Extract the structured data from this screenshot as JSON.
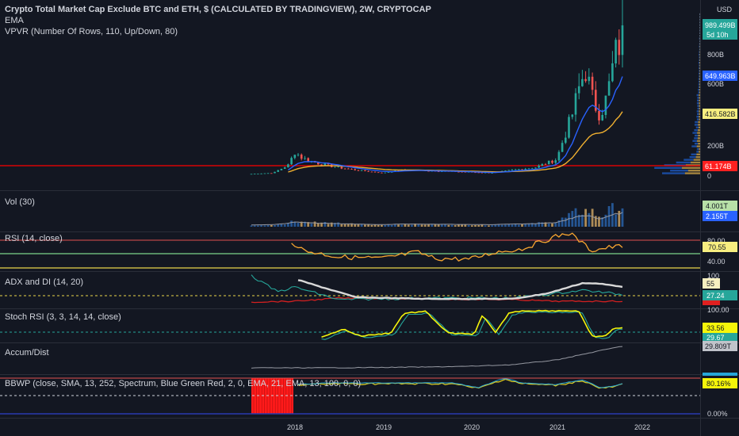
{
  "header": {
    "title": "Crypto Total Market Cap Exclude BTC and ETH, $ (CALCULATED BY TRADINGVIEW), 2W, CRYPTOCAP",
    "ema_label": "EMA",
    "vpvr_label": "VPVR (Number Of Rows, 110, Up/Down, 80)",
    "currency": "USD"
  },
  "price_axis": {
    "ticks": [
      "800B",
      "600B",
      "200B",
      "0"
    ],
    "last_price": "989.499B",
    "countdown": "5d 10h",
    "ema_fast_value": "649.963B",
    "ema_slow_value": "416.582B",
    "hline_value": "61.174B"
  },
  "panes": {
    "vol": {
      "label": "Vol (30)",
      "value1": "4.001T",
      "value2": "2.155T"
    },
    "rsi": {
      "label": "RSI (14, close)",
      "tick_top": "80.00",
      "value": "70.55",
      "tick_bottom": "40.00"
    },
    "adx": {
      "label": "ADX and DI (14, 20)",
      "tick_top": "100",
      "value1": "55",
      "value2": "27.24"
    },
    "stoch": {
      "label": "Stoch RSI (3, 3, 14, 14, close)",
      "tick_top": "100.00",
      "value1": "33.56",
      "value2": "29.67"
    },
    "ad": {
      "label": "Accum/Dist",
      "value": "29.809T"
    },
    "bbwp": {
      "label": "BBWP (close, SMA, 13, 252, Spectrum, Blue Green Red, 2, 0, EMA, 21, EMA, 13, 100, 0, 0)",
      "value": "80.16%",
      "tick_bottom": "0.00%"
    }
  },
  "time_axis": {
    "labels": [
      "2018",
      "2019",
      "2020",
      "2021",
      "2022"
    ]
  },
  "colors": {
    "background": "#131722",
    "up": "#26a69a",
    "down": "#ef5350",
    "ema_fast": "#2962ff",
    "ema_slow": "#f0b030",
    "rsi": "#f7a530",
    "stoch_k": "#f5f50a",
    "stoch_d": "#26a69a",
    "hline": "#ff0000"
  },
  "chart_data": {
    "type": "line",
    "title": "Crypto Total Market Cap Exclude BTC and ETH, $ (CALCULATED BY TRADINGVIEW), 2W, CRYPTOCAP",
    "xlabel": "",
    "ylabel": "",
    "x": [
      2017.5,
      2017.75,
      2017.92,
      2018.0,
      2018.08,
      2018.25,
      2018.5,
      2018.75,
      2019.0,
      2019.25,
      2019.5,
      2019.75,
      2020.0,
      2020.25,
      2020.5,
      2020.75,
      2021.0,
      2021.08,
      2021.17,
      2021.25,
      2021.33,
      2021.42,
      2021.5,
      2021.58,
      2021.67,
      2021.75,
      2021.79
    ],
    "series": [
      {
        "values": [
          3,
          10,
          60,
          150,
          110,
          75,
          45,
          25,
          10,
          30,
          25,
          20,
          15,
          10,
          30,
          45,
          100,
          240,
          380,
          560,
          700,
          480,
          400,
          520,
          800,
          900,
          989.5
        ]
      }
    ],
    "ylim": [
      0,
      1050
    ],
    "x_ticks": [
      "2018",
      "2019",
      "2020",
      "2021",
      "2022"
    ],
    "y_ticks": [
      "0",
      "200B",
      "600B",
      "800B"
    ],
    "last_value": 989.499,
    "ema_fast_last": 649.963,
    "ema_slow_last": 416.582,
    "hline": 61.174,
    "grid": false,
    "legend": "none"
  }
}
